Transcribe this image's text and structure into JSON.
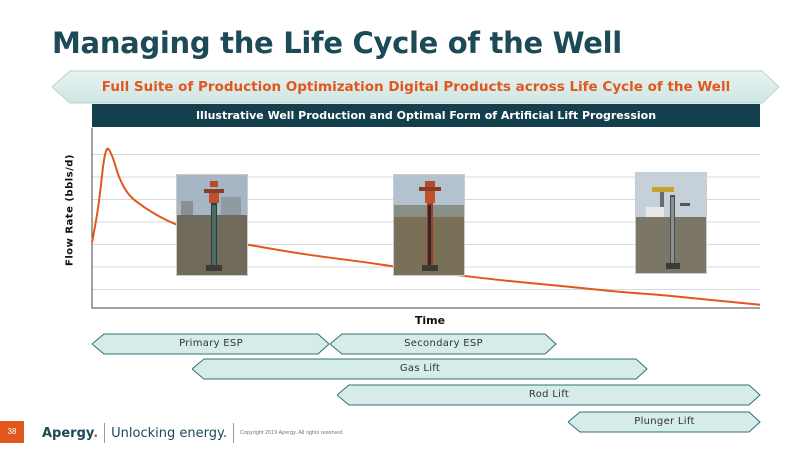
{
  "title": "Managing the Life Cycle of the Well",
  "banner": "Full Suite of Production Optimization Digital Products across Life Cycle of the Well",
  "chart_header": "Illustrative Well Production and Optimal Form of Artificial Lift Progression",
  "chart_data": {
    "type": "line",
    "title": "Illustrative Well Production and Optimal Form of Artificial Lift Progression",
    "xlabel": "Time",
    "ylabel": "Flow Rate (bbls/d)",
    "x": [
      0,
      1,
      2,
      3,
      4,
      5,
      6,
      7,
      8,
      10,
      12,
      15,
      20,
      25,
      30,
      35,
      40,
      45,
      50,
      55,
      60,
      65,
      70,
      75,
      80,
      85,
      90,
      95,
      100
    ],
    "series": [
      {
        "values": [
          40,
          62,
          100,
          94,
          80,
          72,
          67,
          64,
          61,
          56,
          52,
          47,
          41,
          37.5,
          34,
          31,
          28.5,
          25.5,
          22.5,
          20,
          17.5,
          15.5,
          13.5,
          11.5,
          9.5,
          8,
          6,
          4,
          2
        ]
      }
    ],
    "xlim": [
      0,
      100
    ],
    "ylim": [
      0,
      110
    ],
    "x_ticks_labeled": false,
    "y_ticks_labeled": false,
    "grid": true,
    "line_color": "#e2571d"
  },
  "lift_phases": [
    {
      "label": "Primary ESP"
    },
    {
      "label": "Secondary ESP"
    },
    {
      "label": "Gas Lift"
    },
    {
      "label": "Rod Lift"
    },
    {
      "label": "Plunger Lift"
    }
  ],
  "photos": [
    {
      "icon": "esp-wellhead-photo"
    },
    {
      "icon": "esp-wellhead-photo"
    },
    {
      "icon": "rod-lift-pumpjack-photo"
    }
  ],
  "footer": {
    "page_number": "38",
    "logo": "Apergy",
    "logo_dot": ".",
    "tagline": "Unlocking energy.",
    "copyright": "Copyright 2019 Apergy. All rights reserved."
  },
  "colors": {
    "title": "#1c4a57",
    "accent": "#e2571d",
    "header_bg": "#14404d",
    "arrow_fill": "#d6ece9",
    "arrow_stroke": "#2f6f73"
  }
}
